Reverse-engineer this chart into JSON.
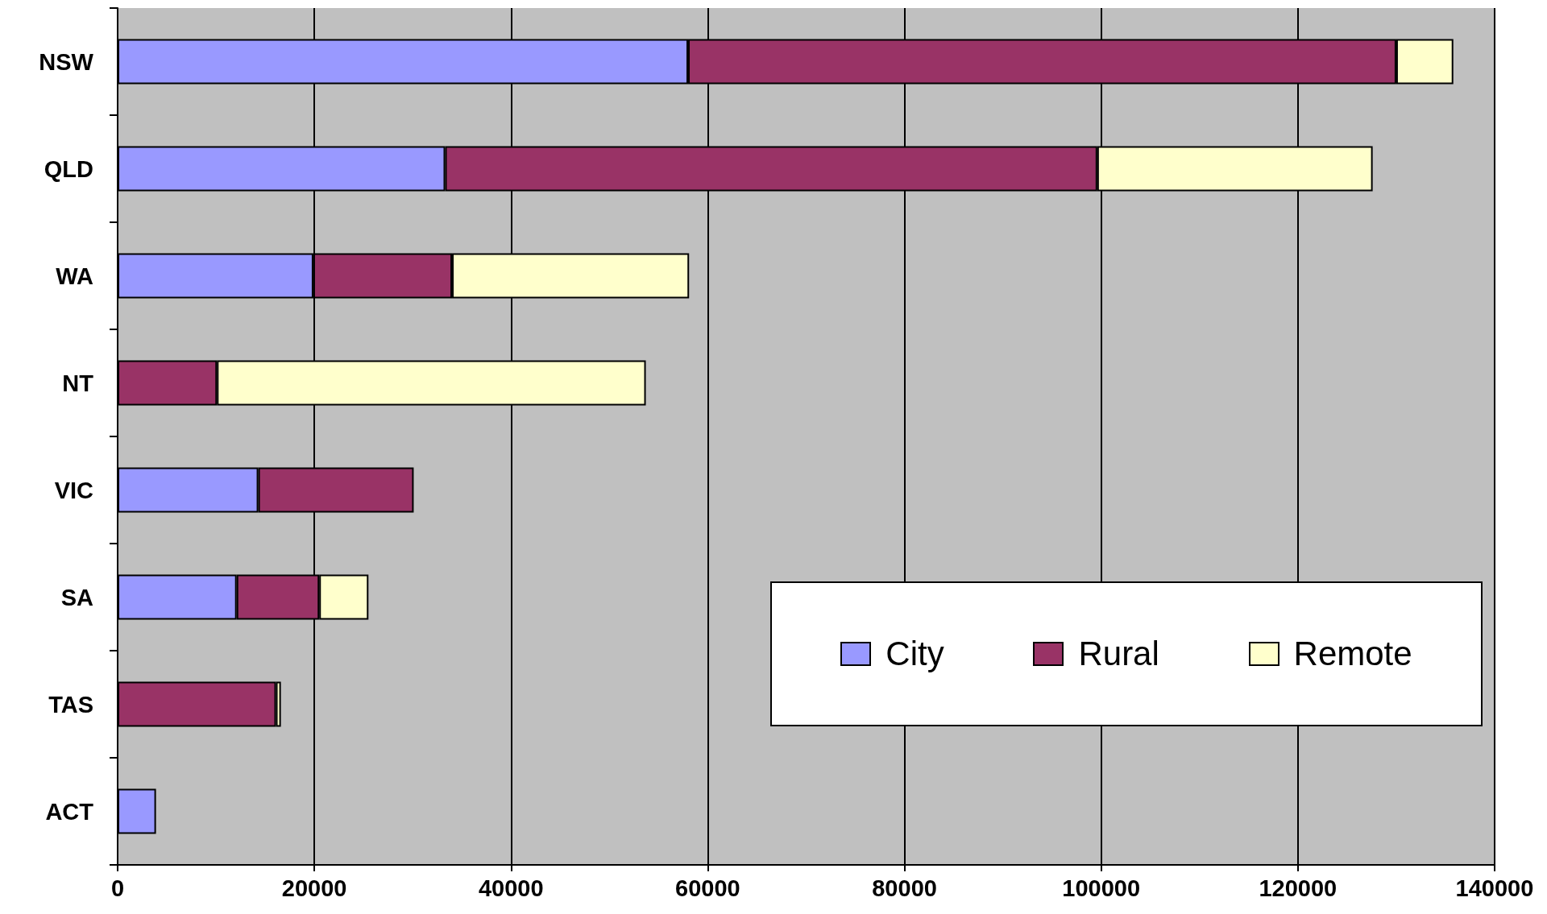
{
  "chart_data": {
    "type": "bar",
    "orientation": "horizontal",
    "stacked": true,
    "categories": [
      "NSW",
      "QLD",
      "WA",
      "NT",
      "VIC",
      "SA",
      "TAS",
      "ACT"
    ],
    "series": [
      {
        "name": "City",
        "color": "#9999ff",
        "values": [
          58000,
          33300,
          19900,
          null,
          14300,
          12100,
          null,
          3900
        ]
      },
      {
        "name": "Rural",
        "color": "#993366",
        "values": [
          72000,
          66300,
          14100,
          10100,
          15800,
          8400,
          16100,
          null
        ]
      },
      {
        "name": "Remote",
        "color": "#ffffcc",
        "values": [
          5800,
          28000,
          24100,
          43600,
          null,
          5000,
          500,
          null
        ]
      }
    ],
    "xlim": [
      0,
      140000
    ],
    "xticks": [
      0,
      20000,
      40000,
      60000,
      80000,
      100000,
      120000,
      140000
    ],
    "grid": "x",
    "legend": "bottom right"
  }
}
